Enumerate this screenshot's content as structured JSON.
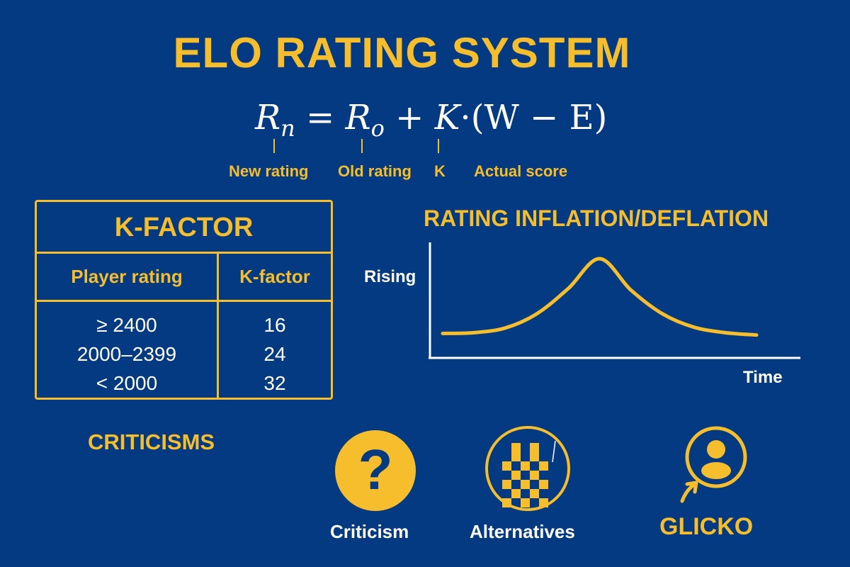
{
  "title": "ELO RATING SYSTEM",
  "formula": {
    "lhs": "R",
    "lhs_sub": "n",
    "eq": "=",
    "r_old": "R",
    "r_old_sub": "o",
    "plus": "+",
    "k": "K",
    "rest": "·(W − E)",
    "labels": [
      "New rating",
      "Old rating",
      "K",
      "Actual score"
    ]
  },
  "k_factor_table": {
    "title": "K-FACTOR",
    "headers": [
      "Player rating",
      "K-factor"
    ],
    "rows": [
      {
        "rating": "≥ 2400",
        "k": "16"
      },
      {
        "rating": "2000–2399",
        "k": "24"
      },
      {
        "rating": "< 2000",
        "k": "32"
      }
    ]
  },
  "chart_data": {
    "type": "line",
    "title": "RATING INFLATION/DEFLATION",
    "xlabel": "Time",
    "ylabel": "Rising",
    "grid": false,
    "x": [
      0,
      1,
      2,
      3,
      4,
      5,
      6,
      7,
      8,
      9,
      10
    ],
    "values": [
      0.05,
      0.06,
      0.12,
      0.3,
      0.62,
      1.0,
      0.6,
      0.3,
      0.13,
      0.06,
      0.03
    ],
    "color": "#f6bd2c"
  },
  "criticisms": {
    "section_label": "CRITICISMS",
    "items": [
      {
        "label": "Criticism",
        "icon": "question-icon"
      },
      {
        "label": "Alternatives",
        "icon": "checkerboard-icon"
      },
      {
        "label": "GLICKO",
        "icon": "user-icon"
      }
    ]
  },
  "colors": {
    "background": "#033a82",
    "accent": "#f6bd2c",
    "text": "#ffffff"
  }
}
